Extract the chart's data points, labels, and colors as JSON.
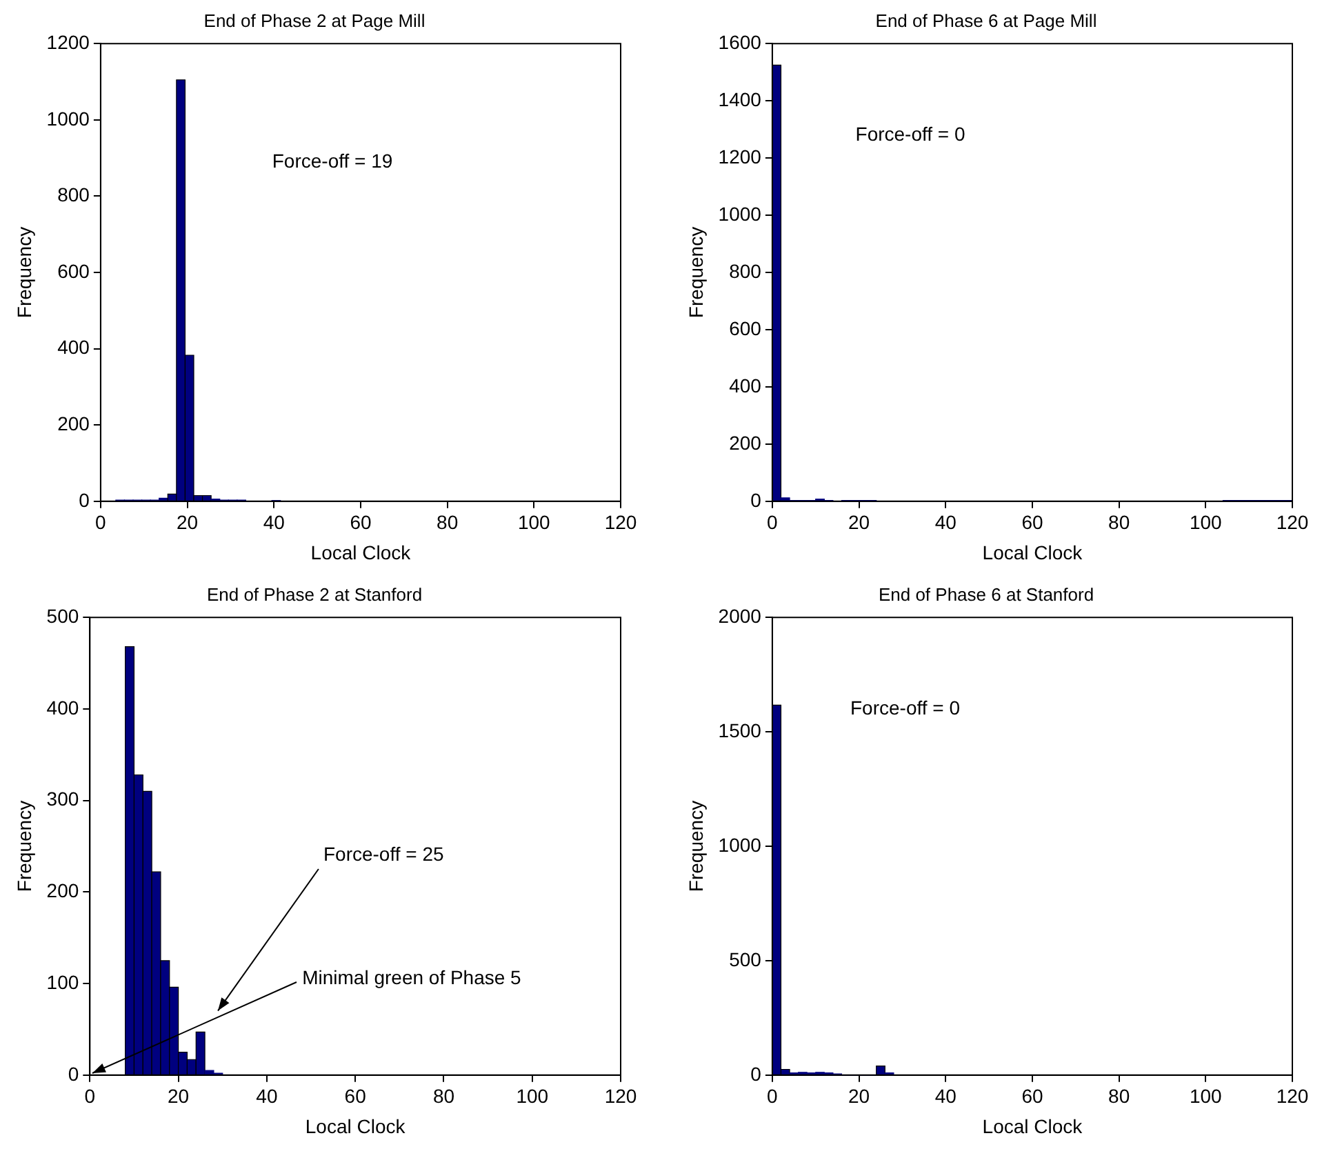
{
  "chart_data": [
    {
      "type": "histogram",
      "title": "End of Phase 2 at Page Mill",
      "xlabel": "Local Clock",
      "ylabel": "Frequency",
      "color": "#00007f",
      "bins": [
        3.5,
        5.5,
        7.5,
        9.5,
        11.5,
        13.5,
        15.5,
        17.5,
        19.5,
        21.5,
        23.5,
        25.5,
        27.5,
        29.5,
        31.5,
        33.5,
        35.5,
        37.5,
        39.5,
        41.5
      ],
      "values": [
        3,
        3,
        3,
        3,
        3,
        8,
        19,
        1105,
        383,
        15,
        15,
        6,
        3,
        3,
        3,
        0,
        0,
        0,
        2
      ],
      "xlim": [
        0,
        120
      ],
      "xticks": [
        0,
        20,
        40,
        60,
        80,
        100,
        120
      ],
      "ylim": [
        0,
        1200
      ],
      "yticks": [
        0,
        200,
        400,
        600,
        800,
        1000,
        1200
      ],
      "grid": false,
      "legend": false,
      "annotations": [
        "Force-off = 19"
      ]
    },
    {
      "type": "histogram",
      "title": "End of Phase 6 at Page Mill",
      "xlabel": "Local Clock",
      "ylabel": "Frequency",
      "color": "#00007f",
      "bins": [
        0,
        2,
        4,
        6,
        8,
        10,
        12,
        14,
        16,
        18,
        20,
        22,
        24,
        26,
        28,
        30,
        32,
        34,
        36,
        38,
        40,
        42,
        44,
        46,
        48,
        50,
        52,
        54,
        56,
        58,
        60,
        62,
        64,
        66,
        68,
        70,
        72,
        74,
        76,
        78,
        80,
        82,
        84,
        86,
        88,
        90,
        92,
        94,
        96,
        98,
        100,
        102,
        104,
        106,
        108,
        110,
        112,
        114,
        116,
        118,
        120
      ],
      "values": [
        1525,
        12,
        3,
        3,
        3,
        8,
        3,
        0,
        3,
        3,
        3,
        3,
        0,
        0,
        0,
        0,
        0,
        0,
        0,
        0,
        0,
        0,
        0,
        0,
        0,
        0,
        0,
        0,
        0,
        0,
        0,
        0,
        0,
        0,
        0,
        0,
        0,
        0,
        0,
        0,
        0,
        0,
        0,
        0,
        0,
        0,
        0,
        0,
        0,
        0,
        0,
        0,
        3,
        3,
        3,
        3,
        3,
        3,
        3,
        3
      ],
      "xlim": [
        0,
        120
      ],
      "xticks": [
        0,
        20,
        40,
        60,
        80,
        100,
        120
      ],
      "ylim": [
        0,
        1600
      ],
      "yticks": [
        0,
        200,
        400,
        600,
        800,
        1000,
        1200,
        1400,
        1600
      ],
      "grid": false,
      "legend": false,
      "annotations": [
        "Force-off = 0"
      ]
    },
    {
      "type": "histogram",
      "title": "End of Phase 2 at Stanford",
      "xlabel": "Local Clock",
      "ylabel": "Frequency",
      "color": "#00007f",
      "bins": [
        8,
        10,
        12,
        14,
        16,
        18,
        20,
        22,
        24,
        26,
        28,
        30
      ],
      "values": [
        468,
        328,
        310,
        222,
        125,
        96,
        25,
        17,
        47,
        5,
        2
      ],
      "xlim": [
        0,
        120
      ],
      "xticks": [
        0,
        20,
        40,
        60,
        80,
        100,
        120
      ],
      "ylim": [
        0,
        500
      ],
      "yticks": [
        0,
        100,
        200,
        300,
        400,
        500
      ],
      "grid": false,
      "legend": false,
      "annotations": [
        "Force-off = 25",
        "Minimal green of Phase 5"
      ]
    },
    {
      "type": "histogram",
      "title": "End of Phase 6 at Stanford",
      "xlabel": "Local Clock",
      "ylabel": "Frequency",
      "color": "#00007f",
      "bins": [
        0,
        2,
        4,
        6,
        8,
        10,
        12,
        14,
        16,
        18,
        20,
        22,
        24,
        26,
        28
      ],
      "values": [
        1617,
        25,
        10,
        12,
        10,
        12,
        10,
        5,
        0,
        0,
        0,
        0,
        40,
        10
      ],
      "xlim": [
        0,
        120
      ],
      "xticks": [
        0,
        20,
        40,
        60,
        80,
        100,
        120
      ],
      "ylim": [
        0,
        2000
      ],
      "yticks": [
        0,
        500,
        1000,
        1500,
        2000
      ],
      "grid": false,
      "legend": false,
      "annotations": [
        "Force-off = 0"
      ]
    }
  ]
}
